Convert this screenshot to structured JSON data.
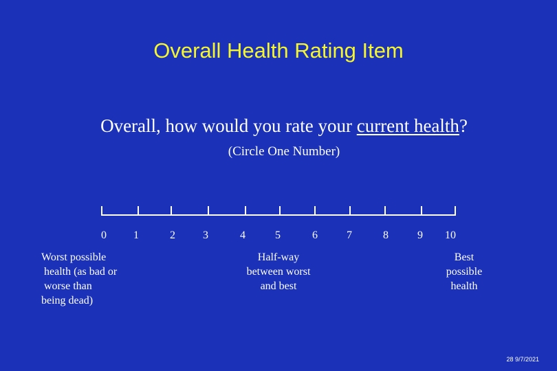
{
  "title": "Overall Health Rating Item",
  "question": {
    "before": "Overall, how would you rate your ",
    "emphasis": "current health",
    "after": "?"
  },
  "instruction": "(Circle One Number)",
  "scale": {
    "numbers": [
      "0",
      "1",
      "2",
      "3",
      "4",
      "5",
      "6",
      "7",
      "8",
      "9",
      "10"
    ]
  },
  "anchors": {
    "worst": "Worst possible\n health (as bad or\n worse than\nbeing dead)",
    "middle": "Half-way\nbetween worst\nand best",
    "best": "Best\npossible\nhealth"
  },
  "footer": "28 9/7/2021",
  "colors": {
    "background": "#1a31b8",
    "title": "#f5f530",
    "text": "#ffffff"
  }
}
